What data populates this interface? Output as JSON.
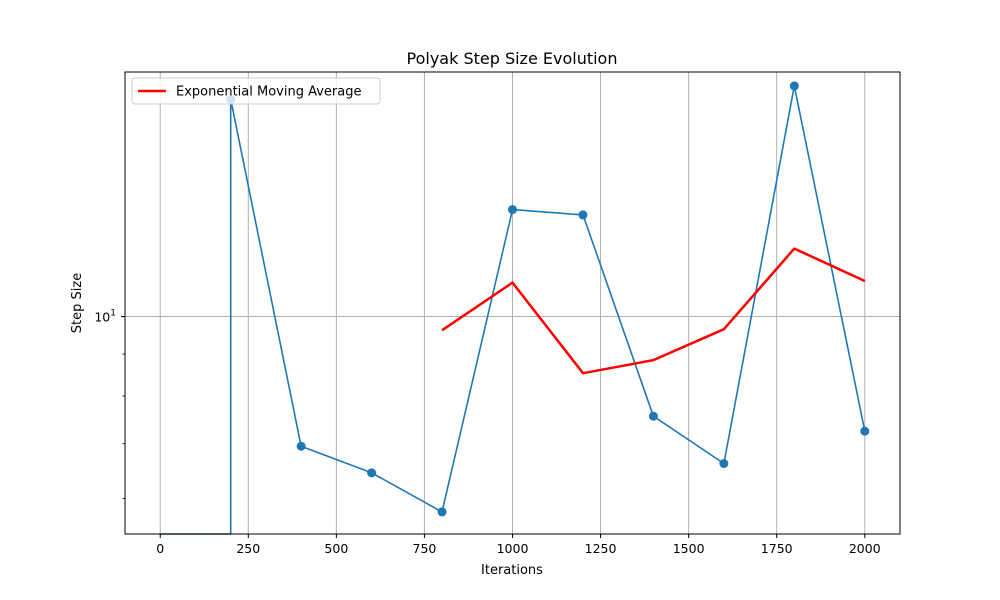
{
  "chart_data": {
    "type": "line",
    "title": "Polyak Step Size Evolution",
    "xlabel": "Iterations",
    "ylabel": "Step Size",
    "xlim": [
      -100,
      2100
    ],
    "ylim_log10": [
      0.735,
      1.298
    ],
    "yscale": "log",
    "x_ticks": [
      0,
      250,
      500,
      750,
      1000,
      1250,
      1500,
      1750,
      2000
    ],
    "x_tick_labels": [
      "0",
      "250",
      "500",
      "750",
      "1000",
      "1250",
      "1500",
      "1750",
      "2000"
    ],
    "y_major_ticks": [
      10
    ],
    "y_minor_ticks": [
      6,
      7,
      8,
      9,
      20
    ],
    "y_tick_label": {
      "base": "10",
      "exp": "1"
    },
    "grid": true,
    "legend": "top-left",
    "series": [
      {
        "name": "",
        "color": "#1f77b4",
        "marker": "circle",
        "points": [
          {
            "x": 0,
            "y": 0
          },
          {
            "x": 200,
            "y": 0
          },
          {
            "x": 200,
            "y": 18.4
          },
          {
            "x": 400,
            "y": 6.95
          },
          {
            "x": 600,
            "y": 6.45
          },
          {
            "x": 800,
            "y": 5.78
          },
          {
            "x": 1000,
            "y": 13.5
          },
          {
            "x": 1200,
            "y": 13.3
          },
          {
            "x": 1400,
            "y": 7.56
          },
          {
            "x": 1600,
            "y": 6.62
          },
          {
            "x": 1800,
            "y": 19.1
          },
          {
            "x": 2000,
            "y": 7.25
          }
        ],
        "marker_x": [
          200,
          400,
          600,
          800,
          1000,
          1200,
          1400,
          1600,
          1800,
          2000
        ]
      },
      {
        "name": "Exponential Moving Average",
        "color": "#ff0000",
        "marker": "none",
        "points": [
          {
            "x": 800,
            "y": 9.62
          },
          {
            "x": 1000,
            "y": 11.0
          },
          {
            "x": 1200,
            "y": 8.53
          },
          {
            "x": 1400,
            "y": 8.85
          },
          {
            "x": 1600,
            "y": 9.65
          },
          {
            "x": 1800,
            "y": 12.1
          },
          {
            "x": 2000,
            "y": 11.05
          }
        ]
      }
    ]
  }
}
